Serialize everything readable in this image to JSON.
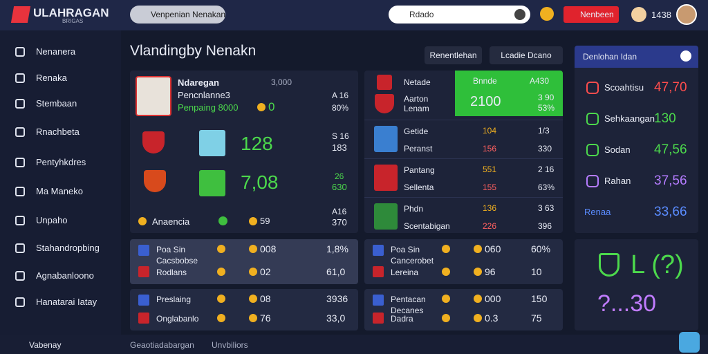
{
  "header": {
    "logo": "ULAHRAGAN",
    "logo_sub": "BRIGAS",
    "search_pill": "Venpenian Nenakan",
    "search": "Rdado",
    "button": "Nenbeen",
    "user_count": "1438"
  },
  "sidebar": {
    "items": [
      "Nenanera",
      "Renaka",
      "Stembaan",
      "Rnachbeta",
      "Pentyhkdres",
      "Ma Maneko",
      "Unpaho",
      "Stahandropbing",
      "Agnabanloono",
      "Hanatarai Iatay"
    ],
    "footer": "Vabenay"
  },
  "main": {
    "title": "Vlandingby Nenakn",
    "buttons": [
      "Renentlehan",
      "Lcadie Dcano"
    ]
  },
  "player": {
    "name": "Ndaregan",
    "subtitle": "Pencnlanne3",
    "stat_label": "Penpaing 8000",
    "coin": "0",
    "top": "3,000",
    "top_a": "A 16",
    "top_b": "80%",
    "rows": [
      {
        "big": "128",
        "a": "S 16",
        "b": "183"
      },
      {
        "big": "7,08",
        "a": "26",
        "b": "630"
      }
    ],
    "footer": {
      "label": "Anaencia",
      "coin": "59",
      "right_a": "A16",
      "right_b": "370"
    }
  },
  "teams": {
    "header": {
      "name": "Netade",
      "sub": "Aarton Lenam",
      "box_title": "Bnnde",
      "box_value": "2100",
      "box_a": "A430",
      "box_b": "3 90",
      "box_c": "53%"
    },
    "rows": [
      {
        "name": "Getide",
        "sub": "Peranst",
        "a": "104",
        "b": "156",
        "c": "1/3",
        "d": "330"
      },
      {
        "name": "Pantang",
        "sub": "Sellenta",
        "a": "551",
        "b": "155",
        "c": "2 16",
        "d": "63%"
      },
      {
        "name": "Phdn",
        "sub": "Scentabigan",
        "a": "136",
        "b": "226",
        "c": "3 63",
        "d": "396"
      }
    ]
  },
  "cards": [
    {
      "title": "Poa Sin",
      "sub": "Cacsbobse",
      "team": "Rodlans",
      "a": "008",
      "b": "02",
      "c": "1,8%",
      "d": "61,0"
    },
    {
      "title": "Preslaing",
      "sub": "",
      "team": "Onglabanlo",
      "a": "08",
      "b": "76",
      "c": "3936",
      "d": "33,0"
    },
    {
      "title": "Poa Sin",
      "sub": "Cancerobet",
      "team": "Lereina",
      "a": "060",
      "b": "96",
      "c": "60%",
      "d": "10"
    },
    {
      "title": "Pentacan",
      "sub": "Decanes",
      "team": "Dadra",
      "a": "000",
      "b": "0.3",
      "c": "150",
      "d": "75"
    }
  ],
  "ranking": {
    "title": "Denlohan Idan",
    "items": [
      {
        "name": "Scoahtisu",
        "value": "47,70",
        "color": "#ff4d4d"
      },
      {
        "name": "Sehkaangan",
        "value": "130",
        "color": "#4cd94c"
      },
      {
        "name": "Sodan",
        "value": "47,56",
        "color": "#4cd94c"
      },
      {
        "name": "Rahan",
        "value": "37,56",
        "color": "#b57cff"
      },
      {
        "name": "Renaa",
        "value": "33,66",
        "color": "#5a8cff"
      }
    ]
  },
  "promo": {
    "line1": "L (?)",
    "line2": "?...30"
  },
  "footer": {
    "left": "Geaotiadabargan",
    "right": "Unvbiliors"
  }
}
